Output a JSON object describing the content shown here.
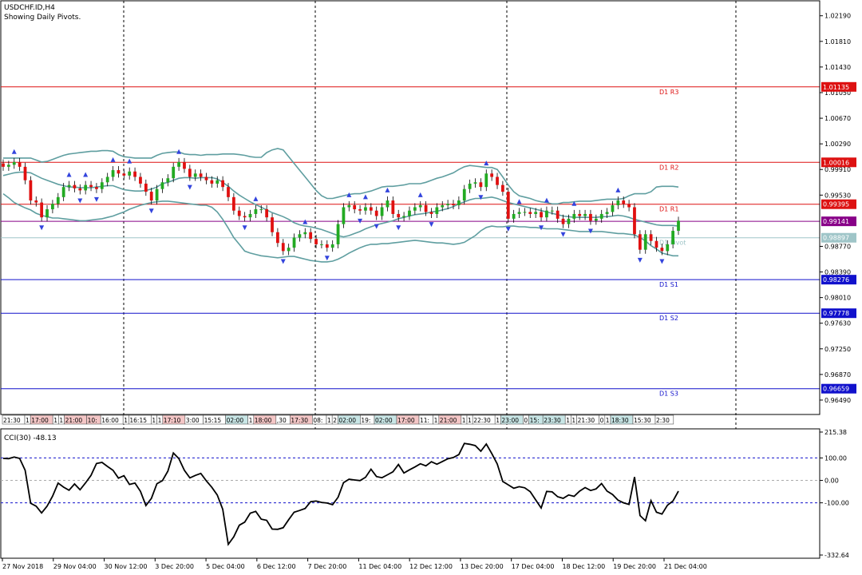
{
  "window": {
    "symbol_title": "USDCHF.ID,H4",
    "subtitle": "Showing Daily Pivots."
  },
  "colors": {
    "background": "#ffffff",
    "axis": "#000000",
    "grid": "#000000",
    "bull_candle": "#22aa22",
    "bear_candle": "#e01010",
    "bollinger": "#5f9ea0",
    "fractal": "#3344dd",
    "resistance": "#dd1111",
    "support": "#1111cc",
    "pivot": "#9fc5c8",
    "current_price": "#880088",
    "cci": "#000000"
  },
  "chart_data": [
    {
      "type": "candlestick",
      "name": "main",
      "ylim": [
        0.963,
        1.024
      ],
      "y_ticks": [
        "1.02190",
        "1.01810",
        "1.01430",
        "1.01050",
        "1.00670",
        "1.00290",
        "0.99910",
        "0.99530",
        "0.98770",
        "0.98390",
        "0.98010",
        "0.97630",
        "0.97250",
        "0.96870",
        "0.96490"
      ],
      "x_ticks": [
        "27 Nov 2018",
        "29 Nov 04:00",
        "30 Nov 12:00",
        "3 Dec 20:00",
        "5 Dec 04:00",
        "6 Dec 12:00",
        "7 Dec 20:00",
        "11 Dec 04:00",
        "12 Dec 12:00",
        "13 Dec 20:00",
        "17 Dec 04:00",
        "18 Dec 12:00",
        "19 Dec 20:00",
        "21 Dec 04:00"
      ],
      "pivot_lines": [
        {
          "name": "D1 R3",
          "value": 1.01135,
          "label": "1.01135",
          "kind": "resistance"
        },
        {
          "name": "D1 R2",
          "value": 1.00016,
          "label": "1.00016",
          "kind": "resistance"
        },
        {
          "name": "D1 R1",
          "value": 0.99395,
          "label": "0.99395",
          "kind": "resistance"
        },
        {
          "name": "D1 Pivot",
          "value": 0.98897,
          "label": "0.98897",
          "kind": "pivot"
        },
        {
          "name": "D1 S1",
          "value": 0.98276,
          "label": "0.98276",
          "kind": "support"
        },
        {
          "name": "D1 S2",
          "value": 0.97778,
          "label": "0.97778",
          "kind": "support"
        },
        {
          "name": "D1 S3",
          "value": 0.96659,
          "label": "0.96659",
          "kind": "support"
        }
      ],
      "current_price": {
        "value": 0.99141,
        "label": "0.99141"
      },
      "close": [
        0.9995,
        0.9998,
        1.0002,
        0.9995,
        0.9975,
        0.9945,
        0.9942,
        0.992,
        0.9932,
        0.994,
        0.995,
        0.9965,
        0.9968,
        0.9963,
        0.996,
        0.9968,
        0.9965,
        0.9962,
        0.9972,
        0.998,
        0.999,
        0.9985,
        0.9982,
        0.9988,
        0.998,
        0.997,
        0.9958,
        0.9945,
        0.9962,
        0.9972,
        0.9978,
        0.9995,
        1.0002,
        0.9992,
        0.998,
        0.9985,
        0.998,
        0.9975,
        0.997,
        0.9975,
        0.9965,
        0.995,
        0.993,
        0.9922,
        0.992,
        0.9925,
        0.9932,
        0.9932,
        0.992,
        0.9898,
        0.9882,
        0.987,
        0.9875,
        0.989,
        0.9895,
        0.9898,
        0.9888,
        0.988,
        0.988,
        0.9875,
        0.988,
        0.991,
        0.9935,
        0.9938,
        0.9932,
        0.993,
        0.9935,
        0.993,
        0.9922,
        0.9935,
        0.9945,
        0.9925,
        0.992,
        0.9922,
        0.993,
        0.9935,
        0.9938,
        0.9928,
        0.9925,
        0.9935,
        0.9938,
        0.994,
        0.9938,
        0.9945,
        0.9962,
        0.997,
        0.9972,
        0.9965,
        0.9985,
        0.998,
        0.9968,
        0.9958,
        0.9918,
        0.9925,
        0.9928,
        0.9928,
        0.9925,
        0.9928,
        0.992,
        0.993,
        0.993,
        0.9918,
        0.991,
        0.9918,
        0.9925,
        0.9922,
        0.9925,
        0.9915,
        0.9918,
        0.9925,
        0.9928,
        0.9938,
        0.9945,
        0.994,
        0.9935,
        0.9895,
        0.9872,
        0.9895,
        0.9885,
        0.9875,
        0.987,
        0.988,
        0.99,
        0.9915
      ],
      "series": [
        {
          "name": "BB upper",
          "values": [
            1.0008,
            1.0008,
            1.0008,
            1.0008,
            1.0008,
            1.0008,
            1.0005,
            1.0002,
            1.0003,
            1.0006,
            1.0009,
            1.0012,
            1.0014,
            1.0015,
            1.0016,
            1.0017,
            1.0018,
            1.0018,
            1.0019,
            1.0019,
            1.0018,
            1.0013,
            1.001,
            1.0009,
            1.0008,
            1.0008,
            1.0008,
            1.0008,
            1.0012,
            1.0015,
            1.0016,
            1.0017,
            1.0017,
            1.0014,
            1.0013,
            1.0013,
            1.0012,
            1.0013,
            1.0013,
            1.0013,
            1.0014,
            1.0014,
            1.0014,
            1.0013,
            1.0012,
            1.001,
            1.0009,
            1.0009,
            1.0016,
            1.002,
            1.0022,
            1.002,
            1.001,
            1.0,
            0.999,
            0.998,
            0.997,
            0.996,
            0.9952,
            0.9948,
            0.9948,
            0.995,
            0.9952,
            0.9954,
            0.9955,
            0.9955,
            0.9957,
            0.9959,
            0.9962,
            0.9965,
            0.9966,
            0.9966,
            0.9967,
            0.9968,
            0.997,
            0.997,
            0.997,
            0.9972,
            0.9975,
            0.9978,
            0.998,
            0.9983,
            0.9986,
            0.9991,
            0.9995,
            0.9997,
            0.9996,
            0.9995,
            0.9994,
            0.9994,
            0.9991,
            0.998,
            0.9968,
            0.9958,
            0.9952,
            0.995,
            0.9948,
            0.9945,
            0.9943,
            0.9942,
            0.994,
            0.994,
            0.9942,
            0.9942,
            0.9943,
            0.9944,
            0.9944,
            0.9944,
            0.9945,
            0.9946,
            0.9947,
            0.9947,
            0.9947,
            0.9948,
            0.9952,
            0.9955,
            0.9955,
            0.9955,
            0.9958,
            0.9965,
            0.9966,
            0.9966,
            0.9966,
            0.9965
          ]
        },
        {
          "name": "BB middle",
          "values": [
            0.9982,
            0.9984,
            0.9986,
            0.9987,
            0.9987,
            0.9986,
            0.9982,
            0.9978,
            0.9975,
            0.9972,
            0.9969,
            0.9967,
            0.9965,
            0.9965,
            0.9964,
            0.9964,
            0.9964,
            0.9965,
            0.9966,
            0.9967,
            0.9967,
            0.9964,
            0.9961,
            0.996,
            0.9959,
            0.9959,
            0.996,
            0.9962,
            0.9965,
            0.997,
            0.9972,
            0.9975,
            0.9978,
            0.9979,
            0.9979,
            0.9978,
            0.9979,
            0.9979,
            0.9979,
            0.9977,
            0.9972,
            0.9966,
            0.9959,
            0.9953,
            0.9948,
            0.9943,
            0.9939,
            0.9935,
            0.9931,
            0.9927,
            0.9924,
            0.9921,
            0.9917,
            0.9912,
            0.9909,
            0.9907,
            0.9906,
            0.9904,
            0.9902,
            0.9899,
            0.9896,
            0.9893,
            0.9891,
            0.9893,
            0.9896,
            0.9899,
            0.9903,
            0.9906,
            0.9909,
            0.9911,
            0.9913,
            0.9915,
            0.9918,
            0.992,
            0.9922,
            0.9924,
            0.9925,
            0.9926,
            0.9928,
            0.9929,
            0.9931,
            0.9933,
            0.9936,
            0.994,
            0.9943,
            0.9946,
            0.9948,
            0.9948,
            0.9949,
            0.995,
            0.9948,
            0.9945,
            0.9942,
            0.994,
            0.9938,
            0.9936,
            0.9934,
            0.9932,
            0.993,
            0.9928,
            0.9926,
            0.9924,
            0.9922,
            0.9921,
            0.992,
            0.992,
            0.992,
            0.992,
            0.992,
            0.9921,
            0.9921,
            0.9922,
            0.9923,
            0.9922,
            0.992,
            0.9917,
            0.9915,
            0.9913,
            0.9911,
            0.9909,
            0.9908,
            0.9908,
            0.9908,
            0.9907
          ]
        },
        {
          "name": "BB lower",
          "values": [
            0.9955,
            0.9949,
            0.9942,
            0.9938,
            0.9934,
            0.9931,
            0.9926,
            0.9923,
            0.9921,
            0.9919,
            0.9919,
            0.9918,
            0.9917,
            0.9916,
            0.9915,
            0.9915,
            0.9916,
            0.9917,
            0.9918,
            0.992,
            0.9922,
            0.9925,
            0.9928,
            0.9932,
            0.9935,
            0.9938,
            0.994,
            0.9942,
            0.9943,
            0.9944,
            0.9944,
            0.9943,
            0.9942,
            0.9941,
            0.994,
            0.9939,
            0.9938,
            0.9938,
            0.9935,
            0.9928,
            0.9917,
            0.9904,
            0.989,
            0.988,
            0.987,
            0.9867,
            0.9865,
            0.9863,
            0.9862,
            0.9861,
            0.986,
            0.9861,
            0.9862,
            0.9862,
            0.986,
            0.9858,
            0.9856,
            0.9855,
            0.9854,
            0.9854,
            0.9855,
            0.9858,
            0.9862,
            0.9867,
            0.9871,
            0.9875,
            0.9878,
            0.988,
            0.988,
            0.9881,
            0.9881,
            0.9882,
            0.9883,
            0.9884,
            0.9885,
            0.9886,
            0.9885,
            0.9884,
            0.9883,
            0.9882,
            0.9882,
            0.9881,
            0.988,
            0.9881,
            0.9883,
            0.9888,
            0.9893,
            0.99,
            0.9905,
            0.9907,
            0.9906,
            0.9906,
            0.9907,
            0.9907,
            0.9906,
            0.9906,
            0.9905,
            0.9905,
            0.9904,
            0.9903,
            0.9903,
            0.9903,
            0.9902,
            0.9901,
            0.99,
            0.9899,
            0.9899,
            0.9899,
            0.9899,
            0.9899,
            0.9898,
            0.9897,
            0.9896,
            0.9896,
            0.9895,
            0.9894,
            0.989,
            0.9885,
            0.9878,
            0.9873,
            0.9867,
            0.9865,
            0.9863,
            0.9863
          ]
        }
      ]
    },
    {
      "type": "line",
      "name": "CCI(30)",
      "title": "CCI(30) -48.13",
      "ylim": [
        -332.64,
        215.38
      ],
      "y_ticks": [
        "215.38",
        "100.00",
        "0.00",
        "-100.00",
        "-332.64"
      ],
      "levels": [
        100,
        0,
        -100
      ],
      "series": [
        {
          "values": [
            98,
            97,
            104,
            98,
            45,
            -102,
            -115,
            -145,
            -115,
            -70,
            -12,
            -30,
            -44,
            -16,
            -42,
            -11,
            22,
            75,
            80,
            62,
            45,
            10,
            21,
            -18,
            -12,
            -49,
            -112,
            -80,
            -15,
            -1,
            41,
            122,
            97,
            45,
            11,
            22,
            31,
            -2,
            -31,
            -65,
            -129,
            -285,
            -251,
            -200,
            -186,
            -146,
            -138,
            -173,
            -178,
            -217,
            -218,
            -211,
            -175,
            -142,
            -134,
            -125,
            -95,
            -92,
            -98,
            -101,
            -108,
            -75,
            -10,
            5,
            2,
            -1,
            14,
            50,
            17,
            12,
            25,
            38,
            71,
            33,
            47,
            60,
            74,
            65,
            83,
            72,
            84,
            96,
            102,
            115,
            165,
            161,
            155,
            130,
            162,
            120,
            73,
            -5,
            -20,
            -35,
            -28,
            -33,
            -50,
            -87,
            -123,
            -49,
            -51,
            -73,
            -80,
            -65,
            -71,
            -48,
            -32,
            -45,
            -38,
            -14,
            -48,
            -63,
            -88,
            -100,
            -107,
            15,
            -157,
            -180,
            -90,
            -142,
            -150,
            -111,
            -92,
            -48
          ]
        }
      ]
    }
  ],
  "session_bar": {
    "labels": [
      "21:30",
      "1",
      "17:00",
      "1",
      "1",
      "21:00",
      "10:",
      "16:00",
      "1",
      "16:15",
      "1",
      "1",
      "17:10",
      "3:00",
      "15:15",
      "02:00",
      "1",
      "18:00",
      ",30",
      "17:30",
      "08:",
      "1",
      "2",
      "02:00",
      "19:",
      "02:00",
      "17:00",
      "11:",
      "1",
      "21:00",
      "1",
      "1",
      "22:30",
      "1",
      "23:00",
      "0",
      "15:",
      "23:30",
      "1",
      "1",
      "21:30",
      "0",
      "1",
      "18:30",
      "15:30",
      "2:30"
    ]
  }
}
